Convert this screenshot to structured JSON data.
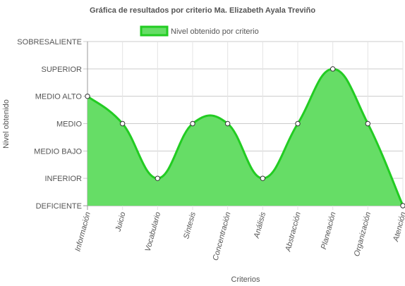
{
  "chart_data": {
    "type": "area",
    "title": "Gráfica de resultados por criterio Ma. Elizabeth Ayala Treviño",
    "xlabel": "Criterios",
    "ylabel": "Nivel obtenido",
    "legend": {
      "position": "top",
      "entries": [
        "Nivel obtenido por criterio"
      ]
    },
    "y_levels": [
      "DEFICIENTE",
      "INFERIOR",
      "MEDIO BAJO",
      "MEDIO",
      "MEDIO ALTO",
      "SUPERIOR",
      "SOBRESALIENTE"
    ],
    "ylim": [
      0,
      6
    ],
    "grid": true,
    "categories": [
      "Información",
      "Juicio",
      "Vocabulario",
      "Síntesis",
      "Concentración",
      "Análisis",
      "Abstracción",
      "Planeación",
      "Organización",
      "Atención"
    ],
    "series": [
      {
        "name": "Nivel obtenido por criterio",
        "values": [
          4,
          3,
          1,
          3,
          3,
          1,
          3,
          5,
          3,
          0
        ],
        "color": "#22cc22",
        "fill": "#66dd66"
      }
    ]
  }
}
